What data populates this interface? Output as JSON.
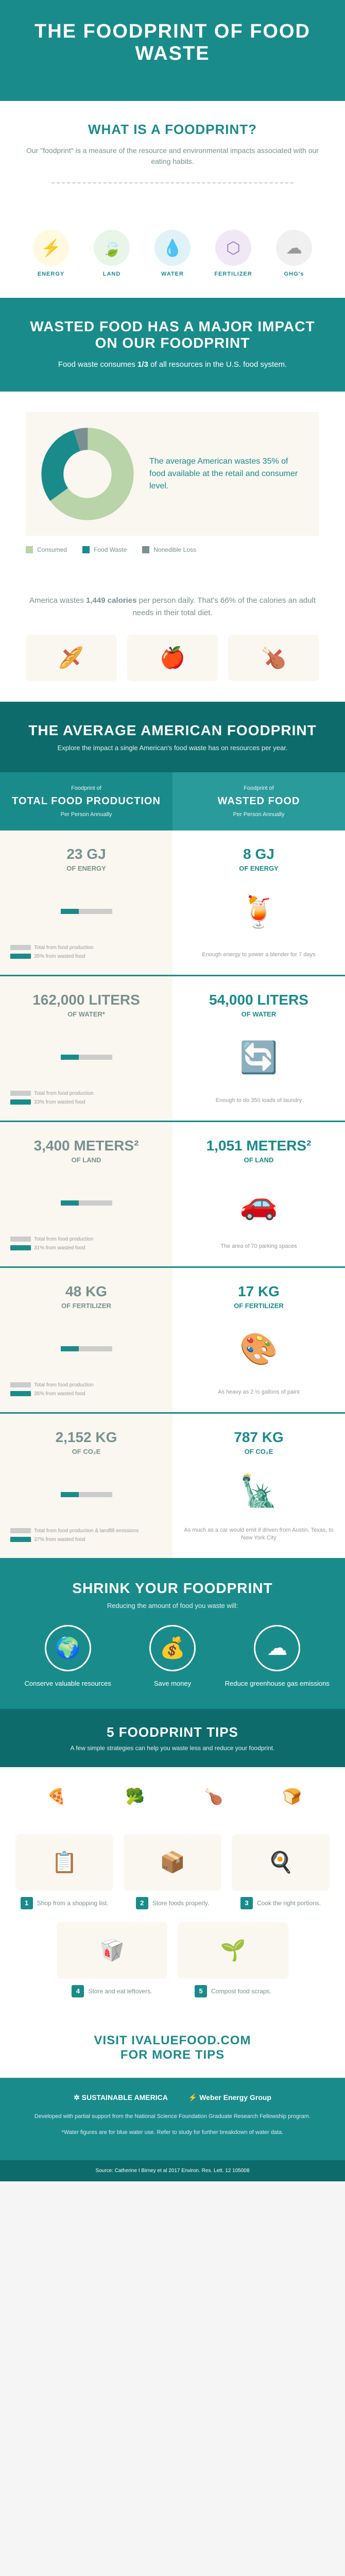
{
  "header": {
    "title": "THE FOODPRINT OF FOOD WASTE"
  },
  "what": {
    "title": "WHAT IS A FOODPRINT?",
    "text": "Our \"foodprint\" is a measure of the resource and environmental impacts associated with our eating habits."
  },
  "icons": [
    {
      "label": "ENERGY",
      "bg": "bg-yellow",
      "glyph": "⚡",
      "color": "#f5c542"
    },
    {
      "label": "LAND",
      "bg": "bg-green",
      "glyph": "🍃",
      "color": "#5cb85c"
    },
    {
      "label": "WATER",
      "bg": "bg-blue",
      "glyph": "💧",
      "color": "#4aa5c4"
    },
    {
      "label": "FERTILIZER",
      "bg": "bg-purple",
      "glyph": "⬡",
      "color": "#9b7bc4"
    },
    {
      "label": "GHG's",
      "bg": "bg-gray",
      "glyph": "☁",
      "color": "#999"
    }
  ],
  "impact": {
    "title": "WASTED FOOD HAS A MAJOR IMPACT ON OUR FOODPRINT",
    "text_pre": "Food waste consumes ",
    "fraction": "1/3",
    "text_post": " of all resources in the U.S. food system."
  },
  "donut": {
    "text": "The average American wastes 35% of food available at the retail and consumer level.",
    "values": {
      "consumed": 65,
      "food_waste": 30,
      "nonedible": 5
    },
    "colors": {
      "consumed": "#b8d4a8",
      "food_waste": "#1a8b8b",
      "nonedible": "#7a9090"
    },
    "legend": [
      {
        "label": "Consumed",
        "color": "#b8d4a8"
      },
      {
        "label": "Food Waste",
        "color": "#1a8b8b"
      },
      {
        "label": "Nonedible Loss",
        "color": "#7a9090"
      }
    ]
  },
  "calories": {
    "text_pre": "America wastes ",
    "value": "1,449 calories",
    "text_post": " per person daily. That's 66% of the calories an adult needs in their total diet."
  },
  "avg": {
    "title": "THE AVERAGE AMERICAN FOODPRINT",
    "subtitle": "Explore the impact a single American's food waste has on resources per year."
  },
  "cols": {
    "left": {
      "sub": "Foodprint of",
      "title": "TOTAL FOOD PRODUCTION",
      "per": "Per Person Annually"
    },
    "right": {
      "sub": "Foodprint of",
      "title": "WASTED FOOD",
      "per": "Per Person Annually"
    }
  },
  "rows": [
    {
      "left": {
        "value": "23 GJ",
        "label": "OF ENERGY",
        "note1": "Total from food production",
        "note2": "35% from wasted food"
      },
      "right": {
        "value": "8 GJ",
        "label": "OF ENERGY",
        "note": "Enough energy to power a blender for 7 days",
        "icon": "🍹",
        "icon_color": "#5cb85c"
      }
    },
    {
      "left": {
        "value": "162,000 LITERS",
        "label": "OF WATER*",
        "note1": "Total from food production",
        "note2": "33% from wasted food"
      },
      "right": {
        "value": "54,000 LITERS",
        "label": "OF WATER",
        "note": "Enough to do 350 loads of laundry",
        "icon": "🔄",
        "icon_color": "#4aa5c4"
      }
    },
    {
      "left": {
        "value": "3,400 METERS²",
        "label": "OF LAND",
        "note1": "Total from food production",
        "note2": "31% from wasted food"
      },
      "right": {
        "value": "1,051 METERS²",
        "label": "OF LAND",
        "note": "The area of 70 parking spaces",
        "icon": "🚗",
        "icon_color": "#f5a742"
      }
    },
    {
      "left": {
        "value": "48 KG",
        "label": "OF FERTILIZER",
        "note1": "Total from food production",
        "note2": "35% from wasted food"
      },
      "right": {
        "value": "17 KG",
        "label": "OF FERTILIZER",
        "note": "As heavy as 2 ½ gallons of paint",
        "icon": "🎨",
        "icon_color": "#9b7bc4"
      }
    },
    {
      "left": {
        "value": "2,152 KG",
        "label": "OF CO₂E",
        "note1": "Total from food production & landfill emissions",
        "note2": "37% from wasted food"
      },
      "right": {
        "value": "787 KG",
        "label": "OF CO₂E",
        "note": "As much as a car would emit if driven from Austin, Texas, to New York City",
        "icon": "🗽",
        "icon_color": "#5cb85c"
      }
    }
  ],
  "shrink": {
    "title": "SHRINK YOUR FOODPRINT",
    "subtitle": "Reducing the amount of food you waste will:",
    "items": [
      {
        "icon": "🌍",
        "label": "Conserve valuable resources"
      },
      {
        "icon": "💰",
        "label": "Save money"
      },
      {
        "icon": "☁",
        "label": "Reduce greenhouse gas emissions"
      }
    ]
  },
  "tips": {
    "title": "5 FOODPRINT TIPS",
    "subtitle": "A few simple strategies can help you waste less and reduce your foodprint.",
    "items": [
      {
        "num": "1",
        "text": "Shop from a shopping list.",
        "icon": "📋"
      },
      {
        "num": "2",
        "text": "Store foods properly.",
        "icon": "📦"
      },
      {
        "num": "3",
        "text": "Cook the right portions.",
        "icon": "🍳"
      },
      {
        "num": "4",
        "text": "Store and eat leftovers.",
        "icon": "🥡"
      },
      {
        "num": "5",
        "text": "Compost food scraps.",
        "icon": "🌱"
      }
    ],
    "foods": [
      "🍕",
      "🥦",
      "🍗",
      "🍞"
    ]
  },
  "visit": {
    "pre": "VISIT ",
    "link": "IVALUEFOOD.COM",
    "post": " FOR MORE TIPS"
  },
  "footer": {
    "logos": [
      "SUSTAINABLE AMERICA",
      "Weber Energy Group"
    ],
    "dev": "Developed with partial support from the National Science Foundation Graduate Research Fellowship program.",
    "water": "*Water figures are for blue water use. Refer to study for further breakdown of water data.",
    "source": "Source: Catherine I Birney et al 2017 Environ. Res. Lett. 12 105008"
  },
  "colors": {
    "teal": "#1a8b8b",
    "dark_teal": "#0d6b6b",
    "cream": "#f9f7f0",
    "red": "#d65a4a"
  }
}
